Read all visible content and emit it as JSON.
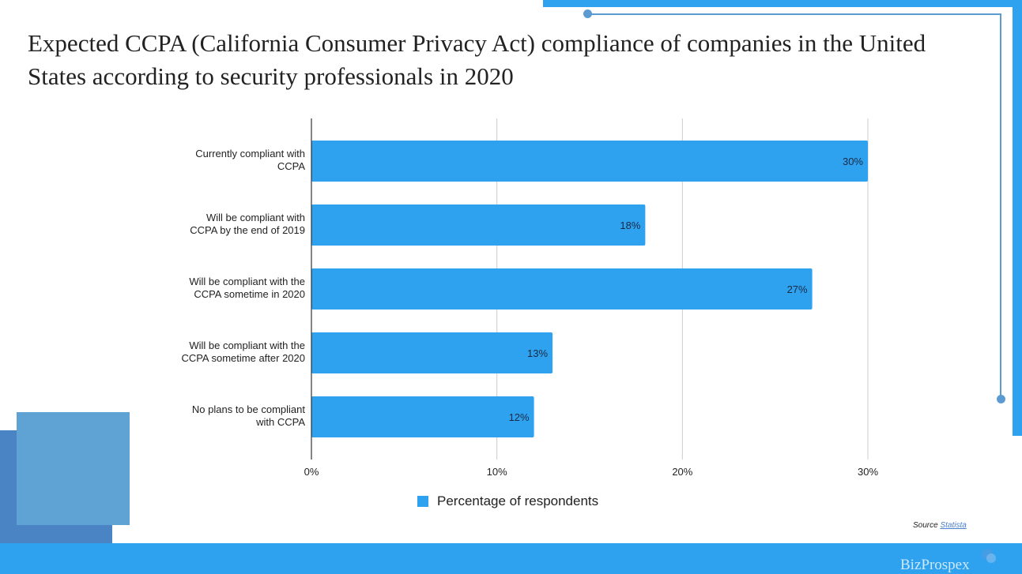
{
  "title": "Expected CCPA (California Consumer Privacy Act) compliance of companies in the United States according to security professionals in 2020",
  "source": {
    "label": "Source",
    "link_text": "Statista"
  },
  "brand": "BizProspex",
  "colors": {
    "accent": "#2ea2ef",
    "deco_line": "#5b9bd1",
    "square_front": "#5fa3d4",
    "square_back": "#4a84c4",
    "bar": "#2ea2ef"
  },
  "chart_data": {
    "type": "bar",
    "orientation": "horizontal",
    "title": "Expected CCPA (California Consumer Privacy Act) compliance of companies in the United States according to security professionals in 2020",
    "categories": [
      [
        "Currently compliant  with",
        "CCPA"
      ],
      [
        "Will be compliant with",
        "CCPA by the end of 2019"
      ],
      [
        "Will be compliant with the",
        "CCPA sometime in 2020"
      ],
      [
        "Will be compliant with the",
        "CCPA sometime after 2020"
      ],
      [
        "No plans to be compliant",
        "with CCPA"
      ]
    ],
    "series": [
      {
        "name": "Percentage of respondents",
        "values": [
          30,
          18,
          27,
          13,
          12
        ],
        "labels": [
          "30%",
          "18%",
          "27%",
          "13%",
          "12%"
        ]
      }
    ],
    "xlabel": "",
    "ylabel": "",
    "xlim": [
      0,
      30
    ],
    "xticks": [
      0,
      10,
      20,
      30
    ],
    "xtick_labels": [
      "0%",
      "10%",
      "20%",
      "30%"
    ],
    "grid": true,
    "legend": "bottom"
  }
}
